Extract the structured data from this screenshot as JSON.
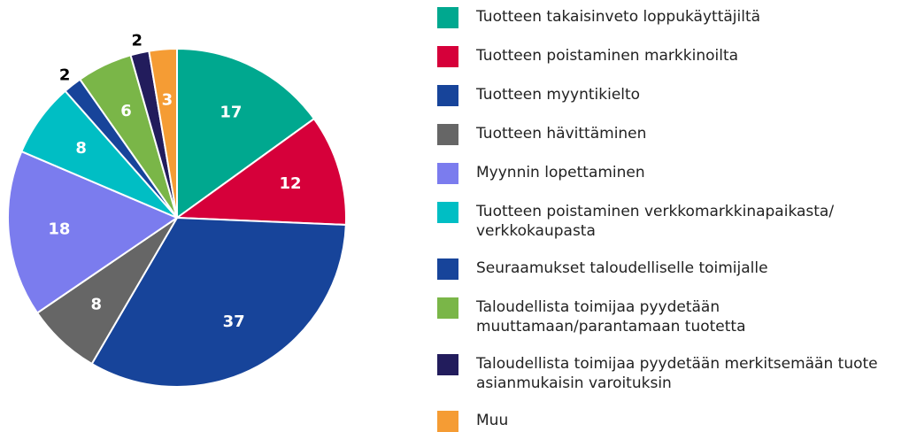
{
  "chart_data": {
    "type": "pie",
    "categories": [
      "Tuotteen takaisinveto loppukäyttäjiltä",
      "Tuotteen poistaminen markkinoilta",
      "Tuotteen myyntikielto",
      "Tuotteen hävittäminen",
      "Myynnin lopettaminen",
      "Tuotteen poistaminen verkkomarkkinapaikasta/ verkkokaupasta",
      "Seuraamukset taloudelliselle toimijalle",
      "Taloudellista toimijaa pyydetään muuttamaan/parantamaan tuotetta",
      "Taloudellista toimijaa pyydetään merkitsemään tuote asianmukaisin varoituksin",
      "Muu"
    ],
    "values": [
      17,
      12,
      37,
      8,
      18,
      8,
      2,
      6,
      2,
      3
    ],
    "colors": [
      "#00a88f",
      "#d6003a",
      "#17449a",
      "#666666",
      "#7b7cee",
      "#00bec4",
      "#17449a",
      "#7ab648",
      "#221c5c",
      "#f59c34"
    ]
  }
}
